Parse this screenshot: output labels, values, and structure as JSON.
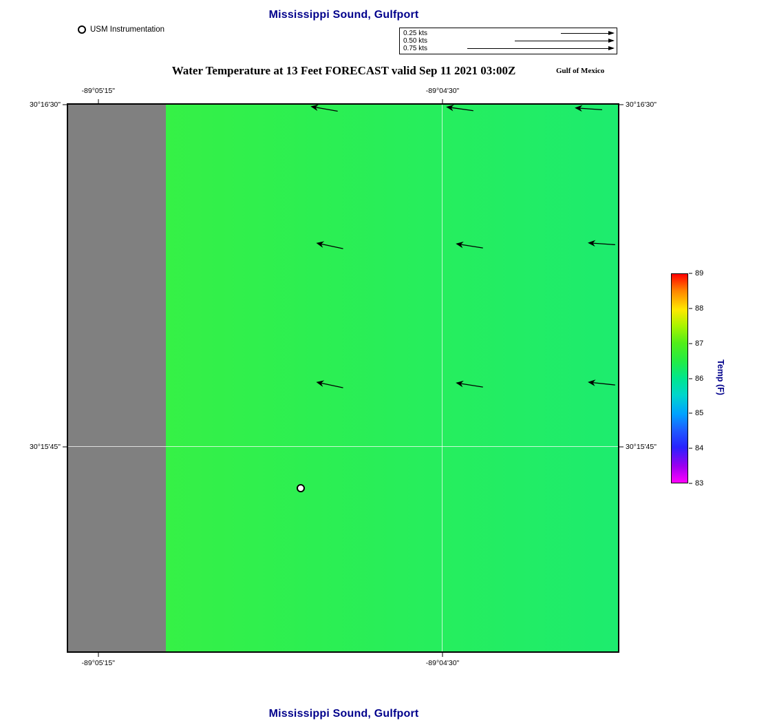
{
  "page": {
    "title_top": "Mississippi Sound, Gulfport",
    "title_bottom": "Mississippi Sound, Gulfport",
    "subtitle": "Water Temperature at 13 Feet FORECAST valid Sep 11 2021 03:00Z",
    "region_label": "Gulf of Mexico"
  },
  "legend": {
    "instrumentation_label": "USM Instrumentation",
    "scale_rows": [
      {
        "label": "0.25 kts",
        "length_pct": 30
      },
      {
        "label": "0.50 kts",
        "length_pct": 56
      },
      {
        "label": "0.75 kts",
        "length_pct": 83
      }
    ]
  },
  "colors": {
    "title": "#00008b",
    "axis_text": "#000000",
    "land": "#808080",
    "gridline": "rgba(255,255,255,0.75)"
  },
  "chart_data": {
    "type": "heatmap",
    "title": "Water Temperature at 13 Feet FORECAST valid Sep 11 2021 03:00Z",
    "region": "Mississippi Sound, Gulfport",
    "subregion_label": "Gulf of Mexico",
    "field_description": "Forecast water temperature at 13 ft depth; water area nearly uniform ~86-87 F (bright green), land masked gray along west edge; current vectors point westward; one instrumentation station marked",
    "water_temp_f_approx": 86.5,
    "water_gradient": [
      "#3cf23e 0%",
      "#2cef52 45%",
      "#1dec6e 100%"
    ],
    "land_color": "#808080",
    "land_width_pct": 17.8,
    "x_axis": {
      "ticks": [
        {
          "label": "-89°05'15\"",
          "pos_pct": 5.7
        },
        {
          "label": "-89°04'30\"",
          "pos_pct": 68.0
        }
      ]
    },
    "y_axis": {
      "ticks": [
        {
          "label": "30°16'30\"",
          "pos_pct": 0.3
        },
        {
          "label": "30°15'45\"",
          "pos_pct": 62.5
        }
      ]
    },
    "grid": {
      "vertical_pct": [
        68.0
      ],
      "horizontal_pct": [
        62.5
      ],
      "color": "rgba(255,255,255,0.75)"
    },
    "vectors": [
      {
        "x_pct": 46.5,
        "y_pct": 0.8,
        "rotate_deg": 10
      },
      {
        "x_pct": 71.2,
        "y_pct": 0.8,
        "rotate_deg": 8
      },
      {
        "x_pct": 94.6,
        "y_pct": 0.8,
        "rotate_deg": 4
      },
      {
        "x_pct": 47.5,
        "y_pct": 25.8,
        "rotate_deg": 12
      },
      {
        "x_pct": 73.0,
        "y_pct": 25.8,
        "rotate_deg": 9
      },
      {
        "x_pct": 97.0,
        "y_pct": 25.5,
        "rotate_deg": 4
      },
      {
        "x_pct": 47.5,
        "y_pct": 51.2,
        "rotate_deg": 12
      },
      {
        "x_pct": 73.0,
        "y_pct": 51.2,
        "rotate_deg": 9
      },
      {
        "x_pct": 97.0,
        "y_pct": 51.0,
        "rotate_deg": 6
      }
    ],
    "station": {
      "name": "USM Instrumentation",
      "x_pct": 42.3,
      "y_pct": 70.2
    },
    "colorbar": {
      "label": "Temp (F)",
      "min": 83,
      "max": 89,
      "ticks_desc": [
        "89",
        "88",
        "87",
        "86",
        "85",
        "84",
        "83"
      ],
      "gradient": [
        "#ff0000 0%",
        "#ff8400 8%",
        "#ffe800 17%",
        "#a8f400 25%",
        "#52ee18 33%",
        "#22ec46 42%",
        "#00e68e 50%",
        "#00d6cc 58%",
        "#00a2ff 67%",
        "#1e5aff 75%",
        "#2822ff 83%",
        "#9b00f0 92%",
        "#ff00ff 100%"
      ]
    }
  }
}
